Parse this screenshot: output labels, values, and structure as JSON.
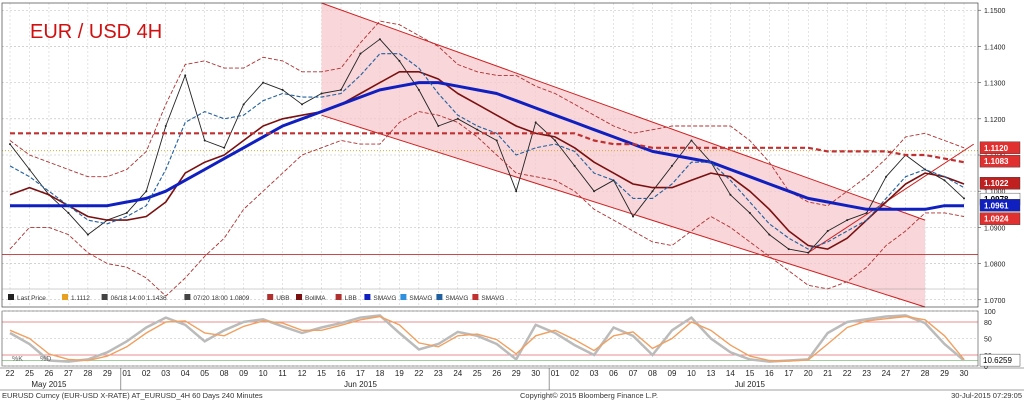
{
  "title": "EUR / USD 4H",
  "legend": {
    "items": [
      {
        "key": "lp",
        "label": "Last Price",
        "color": "#222222"
      },
      {
        "key": "lpval",
        "label": "1.1112",
        "color": "#e8a020"
      },
      {
        "key": "hi",
        "label": "06/18 14:00 1.1436",
        "color": "#444444"
      },
      {
        "key": "lo",
        "label": "07/20 18:00 1.0809",
        "color": "#444444"
      },
      {
        "key": "ubb",
        "label": "UBB",
        "color": "#b03030"
      },
      {
        "key": "bollma",
        "label": "BollMA",
        "color": "#7a1010"
      },
      {
        "key": "lbb",
        "label": "LBB",
        "color": "#b03030"
      },
      {
        "key": "smavg1",
        "label": "SMAVG",
        "color": "#1020c0"
      },
      {
        "key": "smavg2",
        "label": "SMAVG",
        "color": "#3090e0"
      },
      {
        "key": "smavg3",
        "label": "SMAVG",
        "color": "#2060a0"
      },
      {
        "key": "smavg4",
        "label": "SMAVG",
        "color": "#c03030"
      }
    ],
    "osc_items": [
      {
        "key": "k",
        "label": "%K",
        "color": "#bbbbbb"
      },
      {
        "key": "d",
        "label": "%D",
        "color": "#f0a060"
      }
    ]
  },
  "price_labels": [
    {
      "value": 1.112,
      "text": "1.1120",
      "bg": "#e03030",
      "fg": "#ffffff"
    },
    {
      "value": 1.1083,
      "text": "1.1083",
      "bg": "#e03030",
      "fg": "#ffffff"
    },
    {
      "value": 1.1022,
      "text": "1.1022",
      "bg": "#c02020",
      "fg": "#ffffff"
    },
    {
      "value": 1.0978,
      "text": "1.0978",
      "bg": "#ffffff",
      "fg": "#000000"
    },
    {
      "value": 1.0961,
      "text": "1.0961",
      "bg": "#1020c0",
      "fg": "#ffffff"
    },
    {
      "value": 1.0924,
      "text": "1.0924",
      "bg": "#e03030",
      "fg": "#ffffff"
    }
  ],
  "osc_label": {
    "text": "10.6259"
  },
  "xaxis": {
    "days": [
      "22",
      "25",
      "26",
      "27",
      "28",
      "29",
      "01",
      "02",
      "03",
      "04",
      "05",
      "08",
      "09",
      "10",
      "11",
      "12",
      "15",
      "16",
      "17",
      "18",
      "19",
      "22",
      "23",
      "24",
      "25",
      "26",
      "29",
      "30",
      "01",
      "02",
      "03",
      "06",
      "07",
      "08",
      "09",
      "10",
      "13",
      "14",
      "15",
      "16",
      "17",
      "20",
      "21",
      "22",
      "23",
      "24",
      "27",
      "28",
      "29",
      "30"
    ],
    "months": [
      {
        "label": "May 2015",
        "day_index": 2
      },
      {
        "label": "Jun 2015",
        "day_index": 18
      },
      {
        "label": "Jul 2015",
        "day_index": 38
      }
    ]
  },
  "footer": {
    "left": "EURUSD Curncy (EUR-USD X-RATE) AT_EURUSD_4H 60 Days 240 Minutes",
    "center": "Copyright© 2015 Bloomberg Finance L.P.",
    "right": "30-Jul-2015 07:29:05"
  },
  "chart_data": {
    "type": "line",
    "title": "EUR / USD 4H",
    "ylim": [
      1.068,
      1.152
    ],
    "yticks": [
      1.07,
      1.08,
      1.09,
      1.1,
      1.11,
      1.12,
      1.13,
      1.14,
      1.15
    ],
    "oscillator": {
      "ylim": [
        0,
        100
      ],
      "yticks": [
        0,
        20,
        50,
        80,
        100
      ],
      "last_value": 10.6259
    },
    "series": [
      {
        "name": "Last Price",
        "color": "#222222",
        "values": [
          1.113,
          1.106,
          1.099,
          1.094,
          1.088,
          1.092,
          1.094,
          1.1,
          1.118,
          1.132,
          1.114,
          1.112,
          1.124,
          1.13,
          1.128,
          1.124,
          1.127,
          1.128,
          1.138,
          1.142,
          1.136,
          1.128,
          1.118,
          1.12,
          1.117,
          1.114,
          1.1,
          1.119,
          1.114,
          1.107,
          1.1,
          1.103,
          1.093,
          1.1,
          1.107,
          1.114,
          1.108,
          1.099,
          1.094,
          1.088,
          1.084,
          1.083,
          1.089,
          1.092,
          1.094,
          1.104,
          1.11,
          1.106,
          1.103,
          1.098
        ]
      },
      {
        "name": "BollMA",
        "color": "#7a1010",
        "values": [
          1.099,
          1.101,
          1.099,
          1.096,
          1.093,
          1.092,
          1.092,
          1.093,
          1.097,
          1.105,
          1.108,
          1.11,
          1.114,
          1.118,
          1.12,
          1.121,
          1.122,
          1.124,
          1.127,
          1.13,
          1.133,
          1.133,
          1.131,
          1.127,
          1.124,
          1.121,
          1.118,
          1.116,
          1.115,
          1.112,
          1.108,
          1.105,
          1.102,
          1.101,
          1.101,
          1.103,
          1.105,
          1.104,
          1.1,
          1.095,
          1.089,
          1.085,
          1.084,
          1.087,
          1.092,
          1.097,
          1.102,
          1.105,
          1.104,
          1.102
        ]
      },
      {
        "name": "UBB",
        "color": "#b03030",
        "values": [
          1.114,
          1.11,
          1.108,
          1.106,
          1.104,
          1.104,
          1.106,
          1.111,
          1.124,
          1.135,
          1.136,
          1.134,
          1.134,
          1.137,
          1.136,
          1.133,
          1.133,
          1.134,
          1.141,
          1.147,
          1.146,
          1.143,
          1.14,
          1.135,
          1.133,
          1.132,
          1.132,
          1.129,
          1.127,
          1.124,
          1.121,
          1.118,
          1.116,
          1.117,
          1.118,
          1.118,
          1.118,
          1.118,
          1.114,
          1.108,
          1.1,
          1.097,
          1.096,
          1.1,
          1.104,
          1.109,
          1.115,
          1.116,
          1.114,
          1.112
        ]
      },
      {
        "name": "LBB",
        "color": "#b03030",
        "values": [
          1.084,
          1.09,
          1.09,
          1.088,
          1.083,
          1.08,
          1.079,
          1.076,
          1.071,
          1.076,
          1.082,
          1.087,
          1.095,
          1.1,
          1.105,
          1.11,
          1.112,
          1.114,
          1.113,
          1.113,
          1.119,
          1.122,
          1.121,
          1.119,
          1.115,
          1.11,
          1.105,
          1.104,
          1.103,
          1.1,
          1.095,
          1.092,
          1.089,
          1.086,
          1.085,
          1.089,
          1.093,
          1.09,
          1.086,
          1.082,
          1.078,
          1.074,
          1.073,
          1.075,
          1.079,
          1.085,
          1.089,
          1.094,
          1.094,
          1.093
        ]
      },
      {
        "name": "SMAVG",
        "color": "#1020c0",
        "values": [
          1.096,
          1.096,
          1.096,
          1.096,
          1.096,
          1.096,
          1.097,
          1.098,
          1.1,
          1.103,
          1.106,
          1.109,
          1.112,
          1.115,
          1.118,
          1.12,
          1.122,
          1.124,
          1.126,
          1.128,
          1.129,
          1.13,
          1.13,
          1.129,
          1.128,
          1.127,
          1.125,
          1.123,
          1.121,
          1.119,
          1.117,
          1.115,
          1.113,
          1.111,
          1.11,
          1.109,
          1.108,
          1.106,
          1.104,
          1.102,
          1.1,
          1.098,
          1.097,
          1.096,
          1.095,
          1.095,
          1.095,
          1.095,
          1.096,
          1.096
        ]
      },
      {
        "name": "SMAVG",
        "color": "#2060a0",
        "values": [
          1.107,
          1.104,
          1.1,
          1.096,
          1.092,
          1.091,
          1.093,
          1.096,
          1.106,
          1.119,
          1.122,
          1.12,
          1.121,
          1.125,
          1.127,
          1.126,
          1.126,
          1.127,
          1.132,
          1.138,
          1.138,
          1.134,
          1.127,
          1.121,
          1.118,
          1.116,
          1.11,
          1.112,
          1.113,
          1.111,
          1.105,
          1.103,
          1.098,
          1.098,
          1.102,
          1.108,
          1.108,
          1.103,
          1.097,
          1.091,
          1.087,
          1.084,
          1.086,
          1.089,
          1.092,
          1.098,
          1.104,
          1.106,
          1.104,
          1.101
        ]
      },
      {
        "name": "SMAVG",
        "color": "#c03030",
        "values": [
          1.116,
          1.116,
          1.116,
          1.116,
          1.116,
          1.116,
          1.116,
          1.116,
          1.116,
          1.116,
          1.116,
          1.116,
          1.116,
          1.116,
          1.116,
          1.116,
          1.116,
          1.116,
          1.116,
          1.116,
          1.116,
          1.116,
          1.116,
          1.116,
          1.116,
          1.116,
          1.116,
          1.116,
          1.116,
          1.116,
          1.114,
          1.113,
          1.113,
          1.112,
          1.112,
          1.112,
          1.112,
          1.112,
          1.112,
          1.112,
          1.112,
          1.112,
          1.111,
          1.111,
          1.111,
          1.111,
          1.11,
          1.11,
          1.109,
          1.108
        ]
      },
      {
        "name": "%K",
        "color": "#bbbbbb",
        "values": [
          60,
          40,
          10,
          8,
          12,
          25,
          45,
          70,
          88,
          75,
          45,
          65,
          80,
          85,
          72,
          60,
          70,
          78,
          88,
          92,
          60,
          30,
          40,
          62,
          55,
          40,
          12,
          75,
          60,
          38,
          20,
          70,
          55,
          20,
          65,
          88,
          50,
          25,
          12,
          8,
          10,
          12,
          60,
          80,
          85,
          90,
          92,
          78,
          40,
          10
        ]
      },
      {
        "name": "%D",
        "color": "#f0a060",
        "values": [
          65,
          50,
          22,
          12,
          10,
          18,
          35,
          60,
          80,
          82,
          60,
          55,
          72,
          82,
          78,
          65,
          65,
          74,
          84,
          90,
          75,
          42,
          35,
          55,
          58,
          48,
          22,
          55,
          65,
          48,
          28,
          55,
          62,
          32,
          50,
          80,
          65,
          38,
          18,
          10,
          9,
          11,
          40,
          70,
          82,
          86,
          90,
          84,
          55,
          12
        ]
      }
    ],
    "annotations": [
      {
        "type": "channel",
        "x": [
          16,
          47
        ],
        "y": [
          1.152,
          1.092
        ],
        "lower_y": [
          1.121,
          1.068
        ]
      },
      {
        "type": "support",
        "y": 1.0825
      },
      {
        "type": "resistance_dotted",
        "y": 1.1112
      },
      {
        "type": "trendline",
        "x": [
          41,
          49.5
        ],
        "y": [
          1.083,
          1.113
        ]
      }
    ]
  }
}
